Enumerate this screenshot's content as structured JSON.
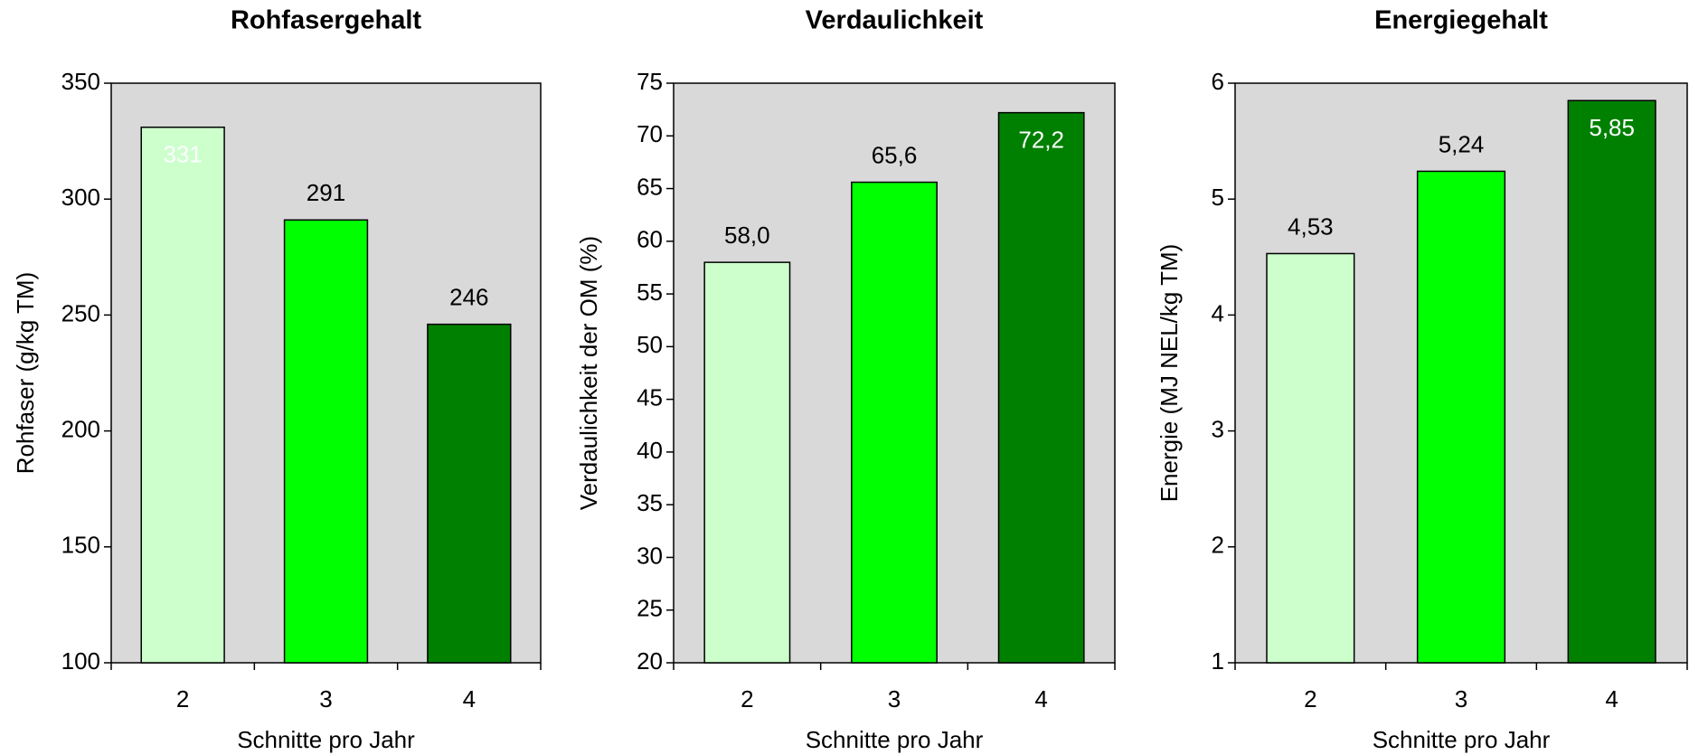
{
  "chart_data": [
    {
      "type": "bar",
      "title": "Rohfasergehalt",
      "x_label": "Schnitte pro Jahr",
      "y_label": "Rohfaser (g/kg TM)",
      "categories": [
        "2",
        "3",
        "4"
      ],
      "values": [
        331,
        291,
        246
      ],
      "colors": [
        "#ccffcc",
        "#00ff00",
        "#008000"
      ],
      "ylim": [
        100,
        350
      ],
      "yticks": [
        100,
        150,
        200,
        250,
        300,
        350
      ]
    },
    {
      "type": "bar",
      "title": "Verdaulichkeit",
      "x_label": "Schnitte pro Jahr",
      "y_label": "Verdaulichkeit der OM (%)",
      "categories": [
        "2",
        "3",
        "4"
      ],
      "values": [
        58.0,
        65.6,
        72.2
      ],
      "value_labels": [
        "58,0",
        "65,6",
        "72,2"
      ],
      "colors": [
        "#ccffcc",
        "#00ff00",
        "#008000"
      ],
      "ylim": [
        20,
        75
      ],
      "yticks": [
        20,
        25,
        30,
        35,
        40,
        45,
        50,
        55,
        60,
        65,
        70,
        75
      ]
    },
    {
      "type": "bar",
      "title": "Energiegehalt",
      "x_label": "Schnitte pro Jahr",
      "y_label": "Energie (MJ NEL/kg TM)",
      "categories": [
        "2",
        "3",
        "4"
      ],
      "values": [
        4.53,
        5.24,
        5.85
      ],
      "value_labels": [
        "4,53",
        "5,24",
        "5,85"
      ],
      "colors": [
        "#ccffcc",
        "#00ff00",
        "#008000"
      ],
      "ylim": [
        1,
        6
      ],
      "yticks": [
        1,
        2,
        3,
        4,
        5,
        6
      ]
    }
  ]
}
